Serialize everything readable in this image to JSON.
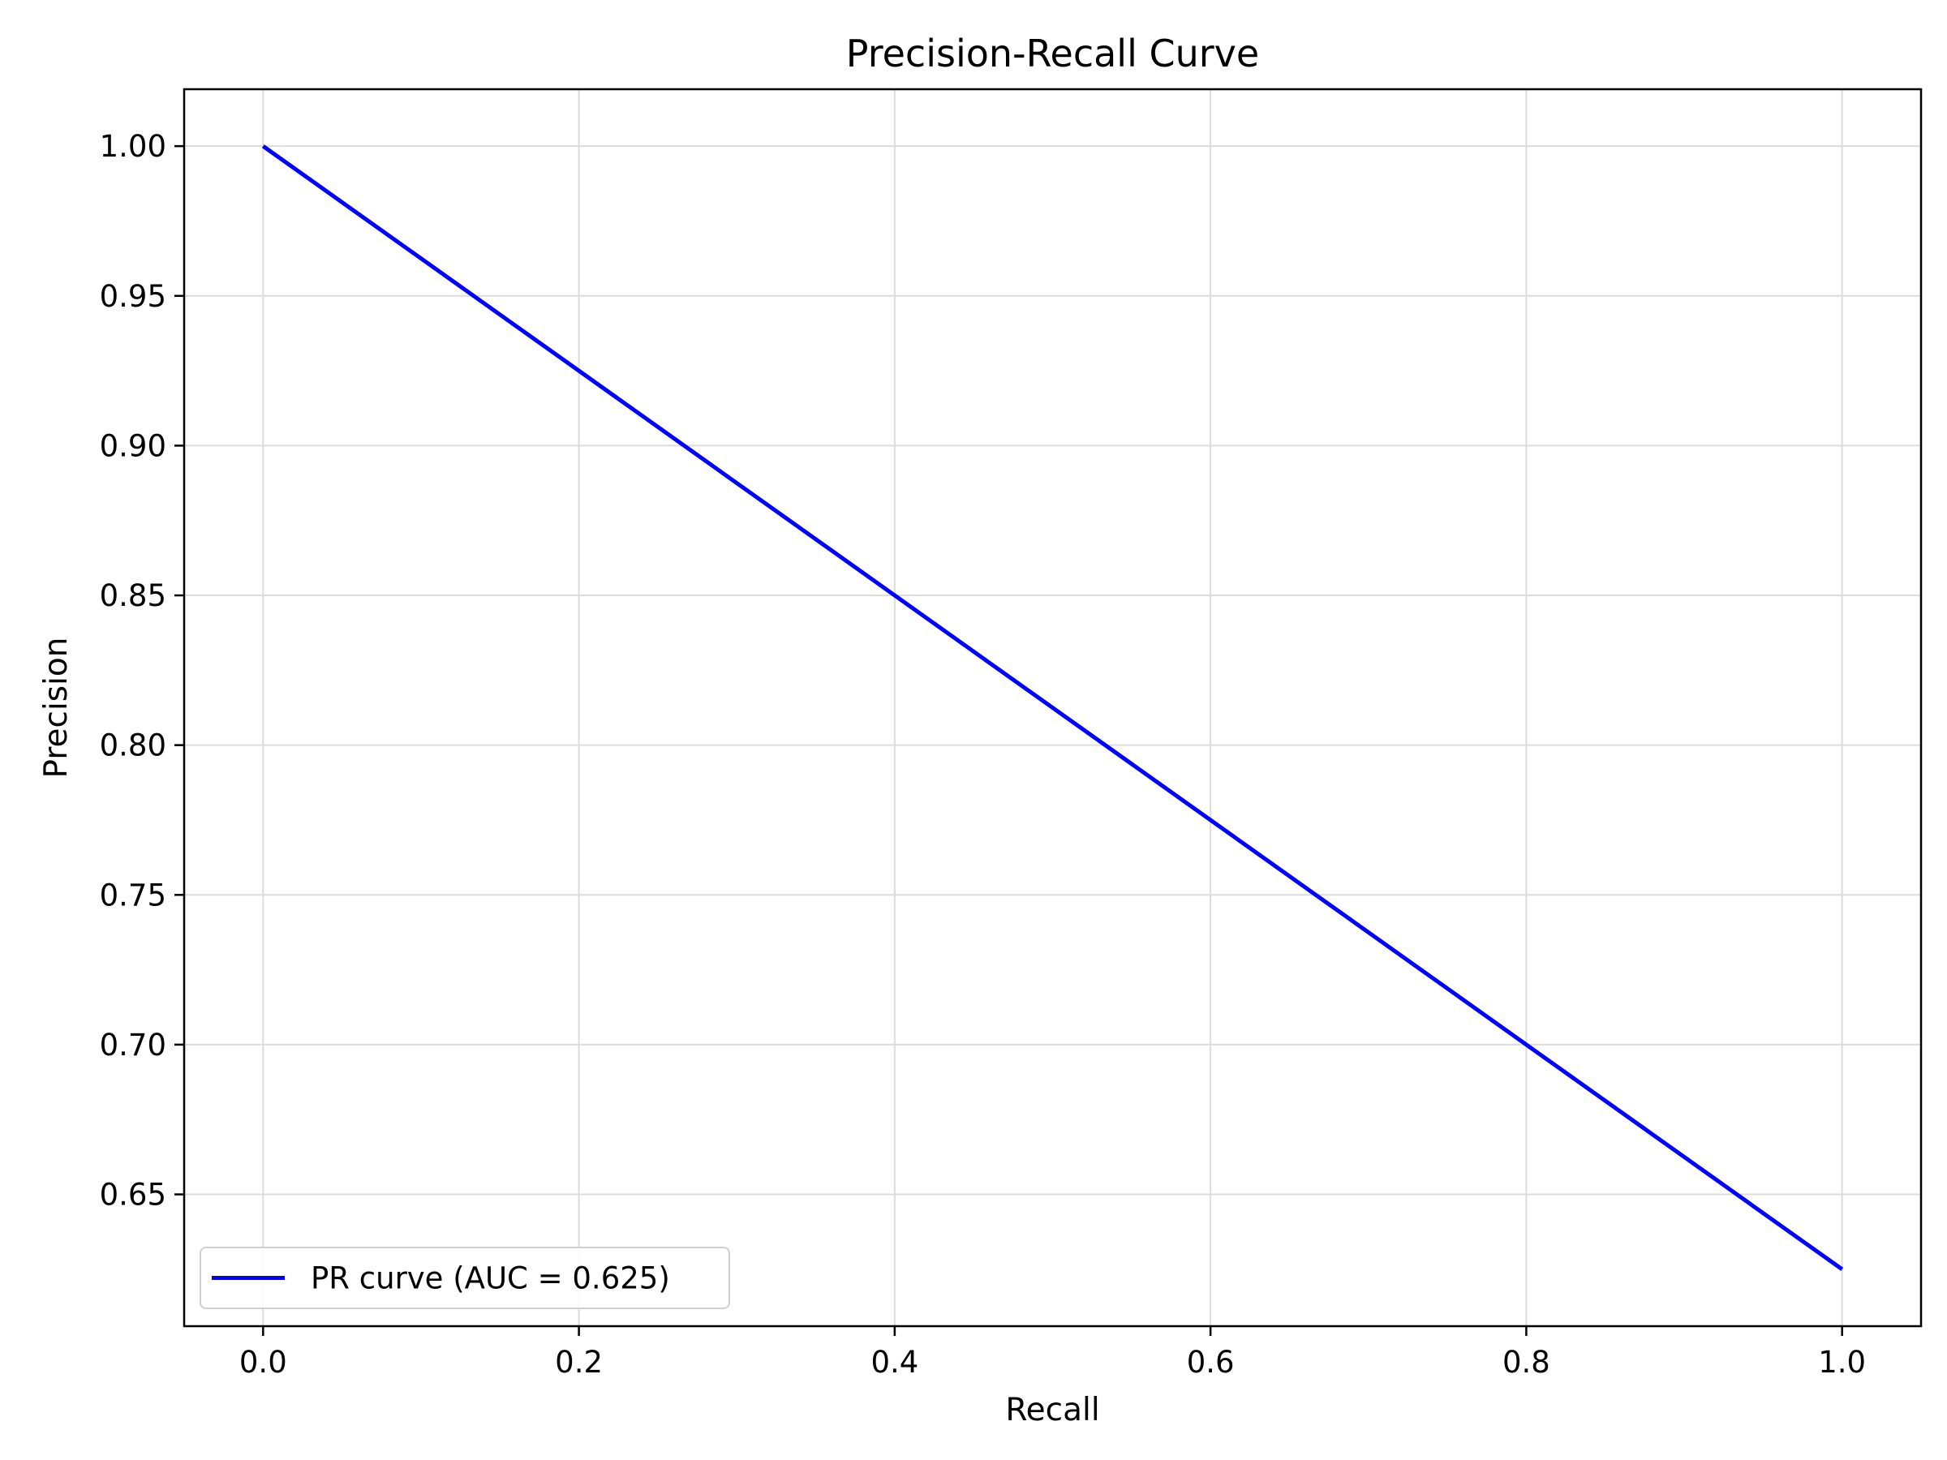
{
  "chart_data": {
    "type": "line",
    "title": "Precision-Recall Curve",
    "xlabel": "Recall",
    "ylabel": "Precision",
    "xlim": [
      -0.05,
      1.05
    ],
    "ylim": [
      0.606,
      1.019
    ],
    "xticks": [
      0.0,
      0.2,
      0.4,
      0.6,
      0.8,
      1.0
    ],
    "xtick_labels": [
      "0.0",
      "0.2",
      "0.4",
      "0.6",
      "0.8",
      "1.0"
    ],
    "yticks": [
      0.65,
      0.7,
      0.75,
      0.8,
      0.85,
      0.9,
      0.95,
      1.0
    ],
    "ytick_labels": [
      "0.65",
      "0.70",
      "0.75",
      "0.80",
      "0.85",
      "0.90",
      "0.95",
      "1.00"
    ],
    "grid": true,
    "legend_position": "lower-left",
    "series": [
      {
        "name": "PR curve (AUC = 0.625)",
        "color": "#0000ff",
        "x": [
          0.0,
          1.0
        ],
        "y": [
          1.0,
          0.625
        ]
      }
    ]
  }
}
